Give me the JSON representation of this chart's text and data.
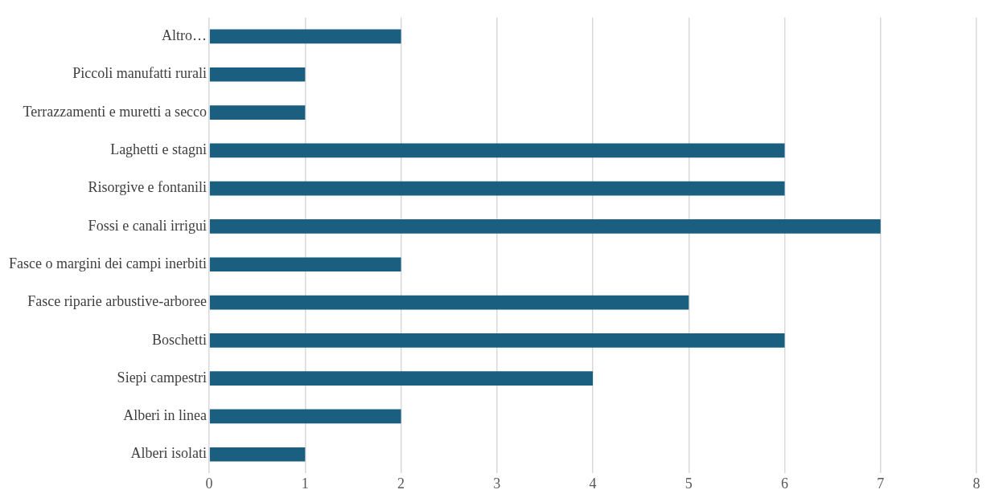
{
  "chart_data": {
    "type": "bar",
    "orientation": "horizontal",
    "categories": [
      "Altro…",
      "Piccoli manufatti rurali",
      "Terrazzamenti e muretti a secco",
      "Laghetti e stagni",
      "Risorgive e fontanili",
      "Fossi e canali irrigui",
      "Fasce o margini dei campi inerbiti",
      "Fasce riparie arbustive-arboree",
      "Boschetti",
      "Siepi campestri",
      "Alberi in linea",
      "Alberi isolati"
    ],
    "values": [
      2,
      1,
      1,
      6,
      6,
      7,
      2,
      5,
      6,
      4,
      2,
      1
    ],
    "color": "#1a5e80",
    "xlim": [
      0,
      8
    ],
    "xticks": [
      0,
      1,
      2,
      3,
      4,
      5,
      6,
      7,
      8
    ],
    "grid": "x",
    "legend": false
  }
}
